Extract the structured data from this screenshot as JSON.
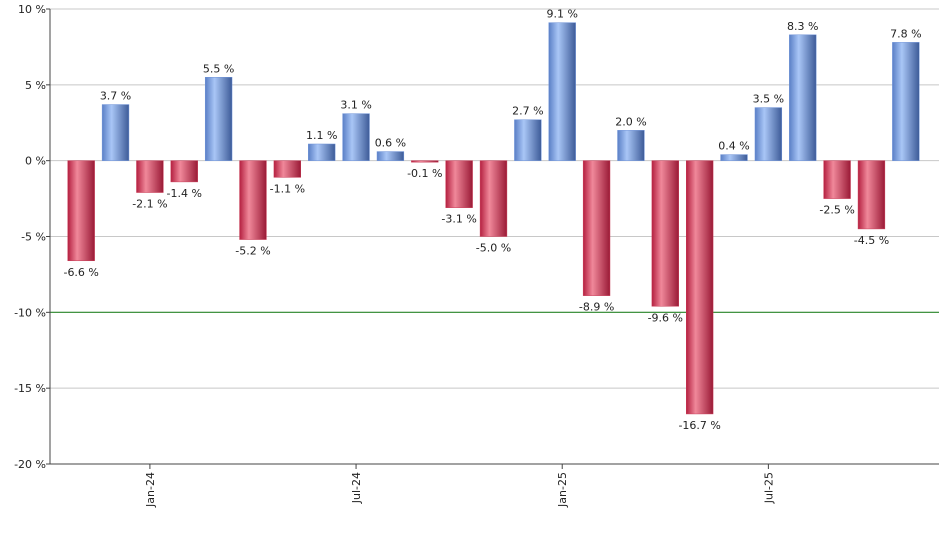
{
  "chart_data": {
    "type": "bar",
    "categories": [
      null,
      null,
      "Jan-24",
      null,
      null,
      null,
      null,
      null,
      "Jul-24",
      null,
      null,
      null,
      null,
      null,
      "Jan-25",
      null,
      null,
      null,
      null,
      null,
      "Jul-25",
      null,
      null,
      null,
      null
    ],
    "values": [
      -6.6,
      3.7,
      -2.1,
      -1.4,
      5.5,
      -5.2,
      -1.1,
      1.1,
      3.1,
      0.6,
      -0.1,
      -3.1,
      -5.0,
      2.7,
      9.1,
      -8.9,
      2.0,
      -9.6,
      -16.7,
      0.4,
      3.5,
      8.3,
      -2.5,
      -4.5,
      7.8
    ],
    "value_labels": [
      "-6.6 %",
      "3.7 %",
      "-2.1 %",
      "-1.4 %",
      "5.5 %",
      "-5.2 %",
      "-1.1 %",
      "1.1 %",
      "3.1 %",
      "0.6 %",
      "-0.1 %",
      "-3.1 %",
      "-5.0 %",
      "2.7 %",
      "9.1 %",
      "-8.9 %",
      "2.0 %",
      "-9.6 %",
      "-16.7 %",
      "0.4 %",
      "3.5 %",
      "8.3 %",
      "-2.5 %",
      "-4.5 %",
      "7.8 %"
    ],
    "positive_color": "#6f93d8",
    "negative_color": "#c83a55",
    "ylim": [
      -20,
      10
    ],
    "yticks": [
      {
        "value": -20,
        "label": "-20 %"
      },
      {
        "value": -15,
        "label": "-15 %"
      },
      {
        "value": -10,
        "label": "-10 %"
      },
      {
        "value": -5,
        "label": "-5 %"
      },
      {
        "value": 0,
        "label": "0 %"
      },
      {
        "value": 5,
        "label": "5 %"
      },
      {
        "value": 10,
        "label": "10 %"
      }
    ],
    "grid": true,
    "reference_line": {
      "value": -10,
      "color": "#2e8b2e"
    }
  }
}
